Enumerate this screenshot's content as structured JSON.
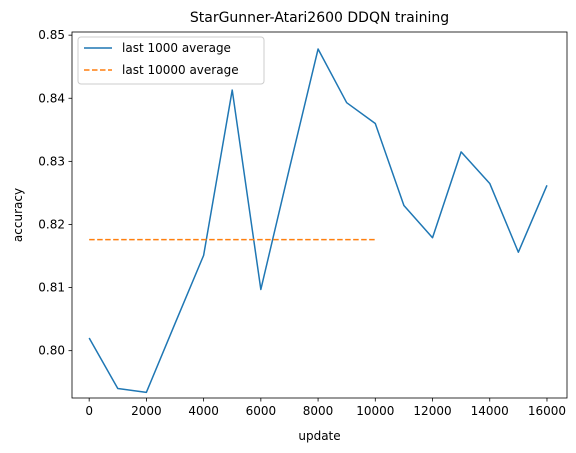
{
  "chart_data": {
    "type": "line",
    "title": "StarGunner-Atari2600 DDQN training",
    "xlabel": "update",
    "ylabel": "accuracy",
    "xlim": [
      -600,
      16700
    ],
    "ylim": [
      0.7925,
      0.8505
    ],
    "x_ticks": [
      0,
      2000,
      4000,
      6000,
      8000,
      10000,
      12000,
      14000,
      16000
    ],
    "x_tick_labels": [
      "0",
      "2000",
      "4000",
      "6000",
      "8000",
      "10000",
      "12000",
      "14000",
      "16000"
    ],
    "y_ticks": [
      0.8,
      0.81,
      0.82,
      0.83,
      0.84,
      0.85
    ],
    "y_tick_labels": [
      "0.80",
      "0.81",
      "0.82",
      "0.83",
      "0.84",
      "0.85"
    ],
    "grid": false,
    "legend_position": "top-left",
    "series": [
      {
        "name": "last 1000 average",
        "color": "#1f77b4",
        "style": "solid",
        "x": [
          0,
          1000,
          2000,
          3000,
          4000,
          5000,
          6000,
          7000,
          8000,
          9000,
          10000,
          11000,
          12000,
          13000,
          14000,
          15000,
          16000
        ],
        "values": [
          0.802,
          0.794,
          0.7934,
          0.8043,
          0.8151,
          0.8413,
          0.8097,
          0.8289,
          0.8478,
          0.8393,
          0.836,
          0.823,
          0.8179,
          0.8315,
          0.8265,
          0.8156,
          0.8262
        ]
      },
      {
        "name": "last 10000 average",
        "color": "#ff7f0e",
        "style": "dashed",
        "x": [
          0,
          10000
        ],
        "values": [
          0.8176,
          0.8176
        ]
      }
    ]
  }
}
